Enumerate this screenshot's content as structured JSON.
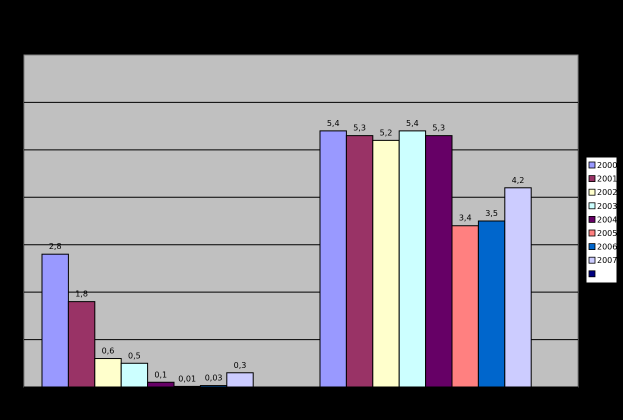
{
  "chart_data": {
    "type": "bar",
    "title": "",
    "xlabel": "",
    "ylabel": "",
    "ylim": [
      0,
      7
    ],
    "grid": true,
    "legend_position": "right",
    "series": [
      {
        "name": "2000",
        "color": "#9999FF",
        "values": [
          2.8,
          5.4
        ]
      },
      {
        "name": "2001",
        "color": "#993366",
        "values": [
          1.8,
          5.3
        ]
      },
      {
        "name": "2002",
        "color": "#FFFFCC",
        "values": [
          0.6,
          5.2
        ]
      },
      {
        "name": "2003",
        "color": "#CCFFFF",
        "values": [
          0.5,
          5.4
        ]
      },
      {
        "name": "2004",
        "color": "#660066",
        "values": [
          0.1,
          5.3
        ]
      },
      {
        "name": "2005",
        "color": "#FF8080",
        "values": [
          0.01,
          3.4
        ]
      },
      {
        "name": "2006",
        "color": "#0066CC",
        "values": [
          0.03,
          3.5
        ]
      },
      {
        "name": "2007",
        "color": "#CCCCFF",
        "values": [
          0.3,
          4.2
        ]
      }
    ],
    "value_labels": [
      [
        "2,8",
        "5,4"
      ],
      [
        "1,8",
        "5,3"
      ],
      [
        "0,6",
        "5,2"
      ],
      [
        "0,5",
        "5,4"
      ],
      [
        "0,1",
        "5,3"
      ],
      [
        "0,01",
        "3,4"
      ],
      [
        "0,03",
        "3,5"
      ],
      [
        "0,3",
        "4,2"
      ]
    ],
    "legend_extra_swatch_color": "#000080",
    "plot_background": "#C0C0C0",
    "page_background": "#000000"
  }
}
